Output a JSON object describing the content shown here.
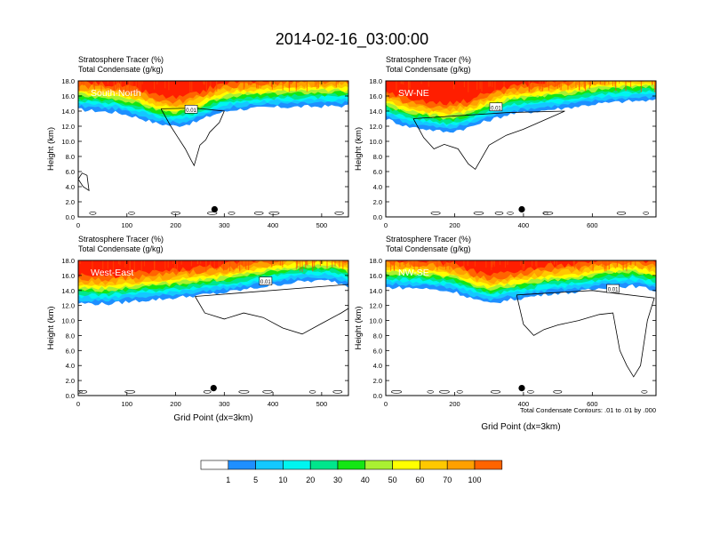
{
  "title": "2014-02-16_03:00:00",
  "footnote": "Total Condensate Contours: .01 to .01 by .000",
  "colors": {
    "levels": [
      "#ffffff",
      "#1e8fff",
      "#14c8ff",
      "#00f5f0",
      "#00e68c",
      "#14e614",
      "#aaf032",
      "#ffff00",
      "#ffc800",
      "#ffa000",
      "#ff6400",
      "#ff1e00"
    ]
  },
  "chart_data": [
    {
      "type": "heatmap",
      "panel_label": "South-North",
      "subtitle_line1": "Stratosphere Tracer   (%)",
      "subtitle_line2": "Total Condensate   (g/kg)",
      "xlabel": "",
      "ylabel": "Height (km)",
      "xlim": [
        0,
        555
      ],
      "ylim": [
        0,
        18
      ],
      "xticks": [
        0,
        100,
        200,
        300,
        400,
        500
      ],
      "yticks": [
        "0.0",
        "2.0",
        "4.0",
        "6.0",
        "8.0",
        "10.0",
        "12.0",
        "14.0",
        "16.0",
        "18.0"
      ],
      "contour_label": "0.01",
      "contour_label_x": 232,
      "contour_label_y": 14.2,
      "marker_x": 280,
      "marker_y": 1.0
    },
    {
      "type": "heatmap",
      "panel_label": "SW-NE",
      "subtitle_line1": "Stratosphere Tracer   (%)",
      "subtitle_line2": "Total Condensate   (g/kg)",
      "xlabel": "",
      "ylabel": "Height (km)",
      "xlim": [
        0,
        785
      ],
      "ylim": [
        0,
        18
      ],
      "xticks": [
        0,
        200,
        400,
        600
      ],
      "yticks": [
        "0.0",
        "2.0",
        "4.0",
        "6.0",
        "8.0",
        "10.0",
        "12.0",
        "14.0",
        "16.0",
        "18.0"
      ],
      "contour_label": "0.01",
      "contour_label_x": 320,
      "contour_label_y": 14.5,
      "marker_x": 395,
      "marker_y": 1.0
    },
    {
      "type": "heatmap",
      "panel_label": "West-East",
      "subtitle_line1": "Stratosphere Tracer   (%)",
      "subtitle_line2": "Total Condensate   (g/kg)",
      "xlabel": "Grid Point (dx=3km)",
      "ylabel": "Height (km)",
      "xlim": [
        0,
        555
      ],
      "ylim": [
        0,
        18
      ],
      "xticks": [
        0,
        100,
        200,
        300,
        400,
        500
      ],
      "yticks": [
        "0.0",
        "2.0",
        "4.0",
        "6.0",
        "8.0",
        "10.0",
        "12.0",
        "14.0",
        "16.0",
        "18.0"
      ],
      "contour_label": "0.01",
      "contour_label_x": 385,
      "contour_label_y": 15.2,
      "marker_x": 278,
      "marker_y": 1.0
    },
    {
      "type": "heatmap",
      "panel_label": "NW-SE",
      "subtitle_line1": "Stratosphere Tracer   (%)",
      "subtitle_line2": "Total Condensate   (g/kg)",
      "xlabel": "Grid Point (dx=3km)",
      "ylabel": "Height (km)",
      "xlim": [
        0,
        785
      ],
      "ylim": [
        0,
        18
      ],
      "xticks": [
        0,
        200,
        400,
        600
      ],
      "yticks": [
        "0.0",
        "2.0",
        "4.0",
        "6.0",
        "8.0",
        "10.0",
        "12.0",
        "14.0",
        "16.0",
        "18.0"
      ],
      "contour_label": "0.01",
      "contour_label_x": 660,
      "contour_label_y": 14.2,
      "marker_x": 395,
      "marker_y": 1.0
    }
  ],
  "colorbar": {
    "labels": [
      "1",
      "5",
      "10",
      "20",
      "30",
      "40",
      "50",
      "60",
      "70",
      "100"
    ]
  }
}
